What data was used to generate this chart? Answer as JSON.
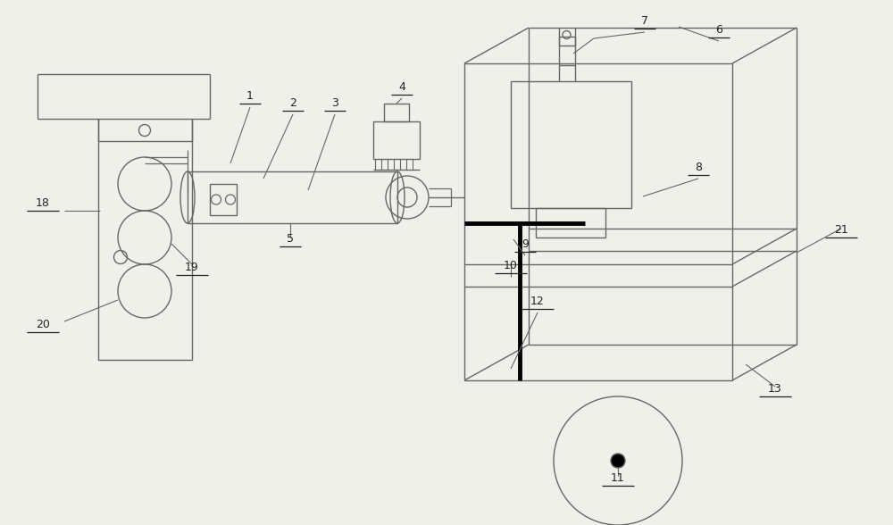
{
  "bg_color": "#f0f0eb",
  "line_color": "#666666",
  "black": "#000000",
  "label_color": "#222222",
  "figsize": [
    10.0,
    5.88
  ],
  "dpi": 100
}
